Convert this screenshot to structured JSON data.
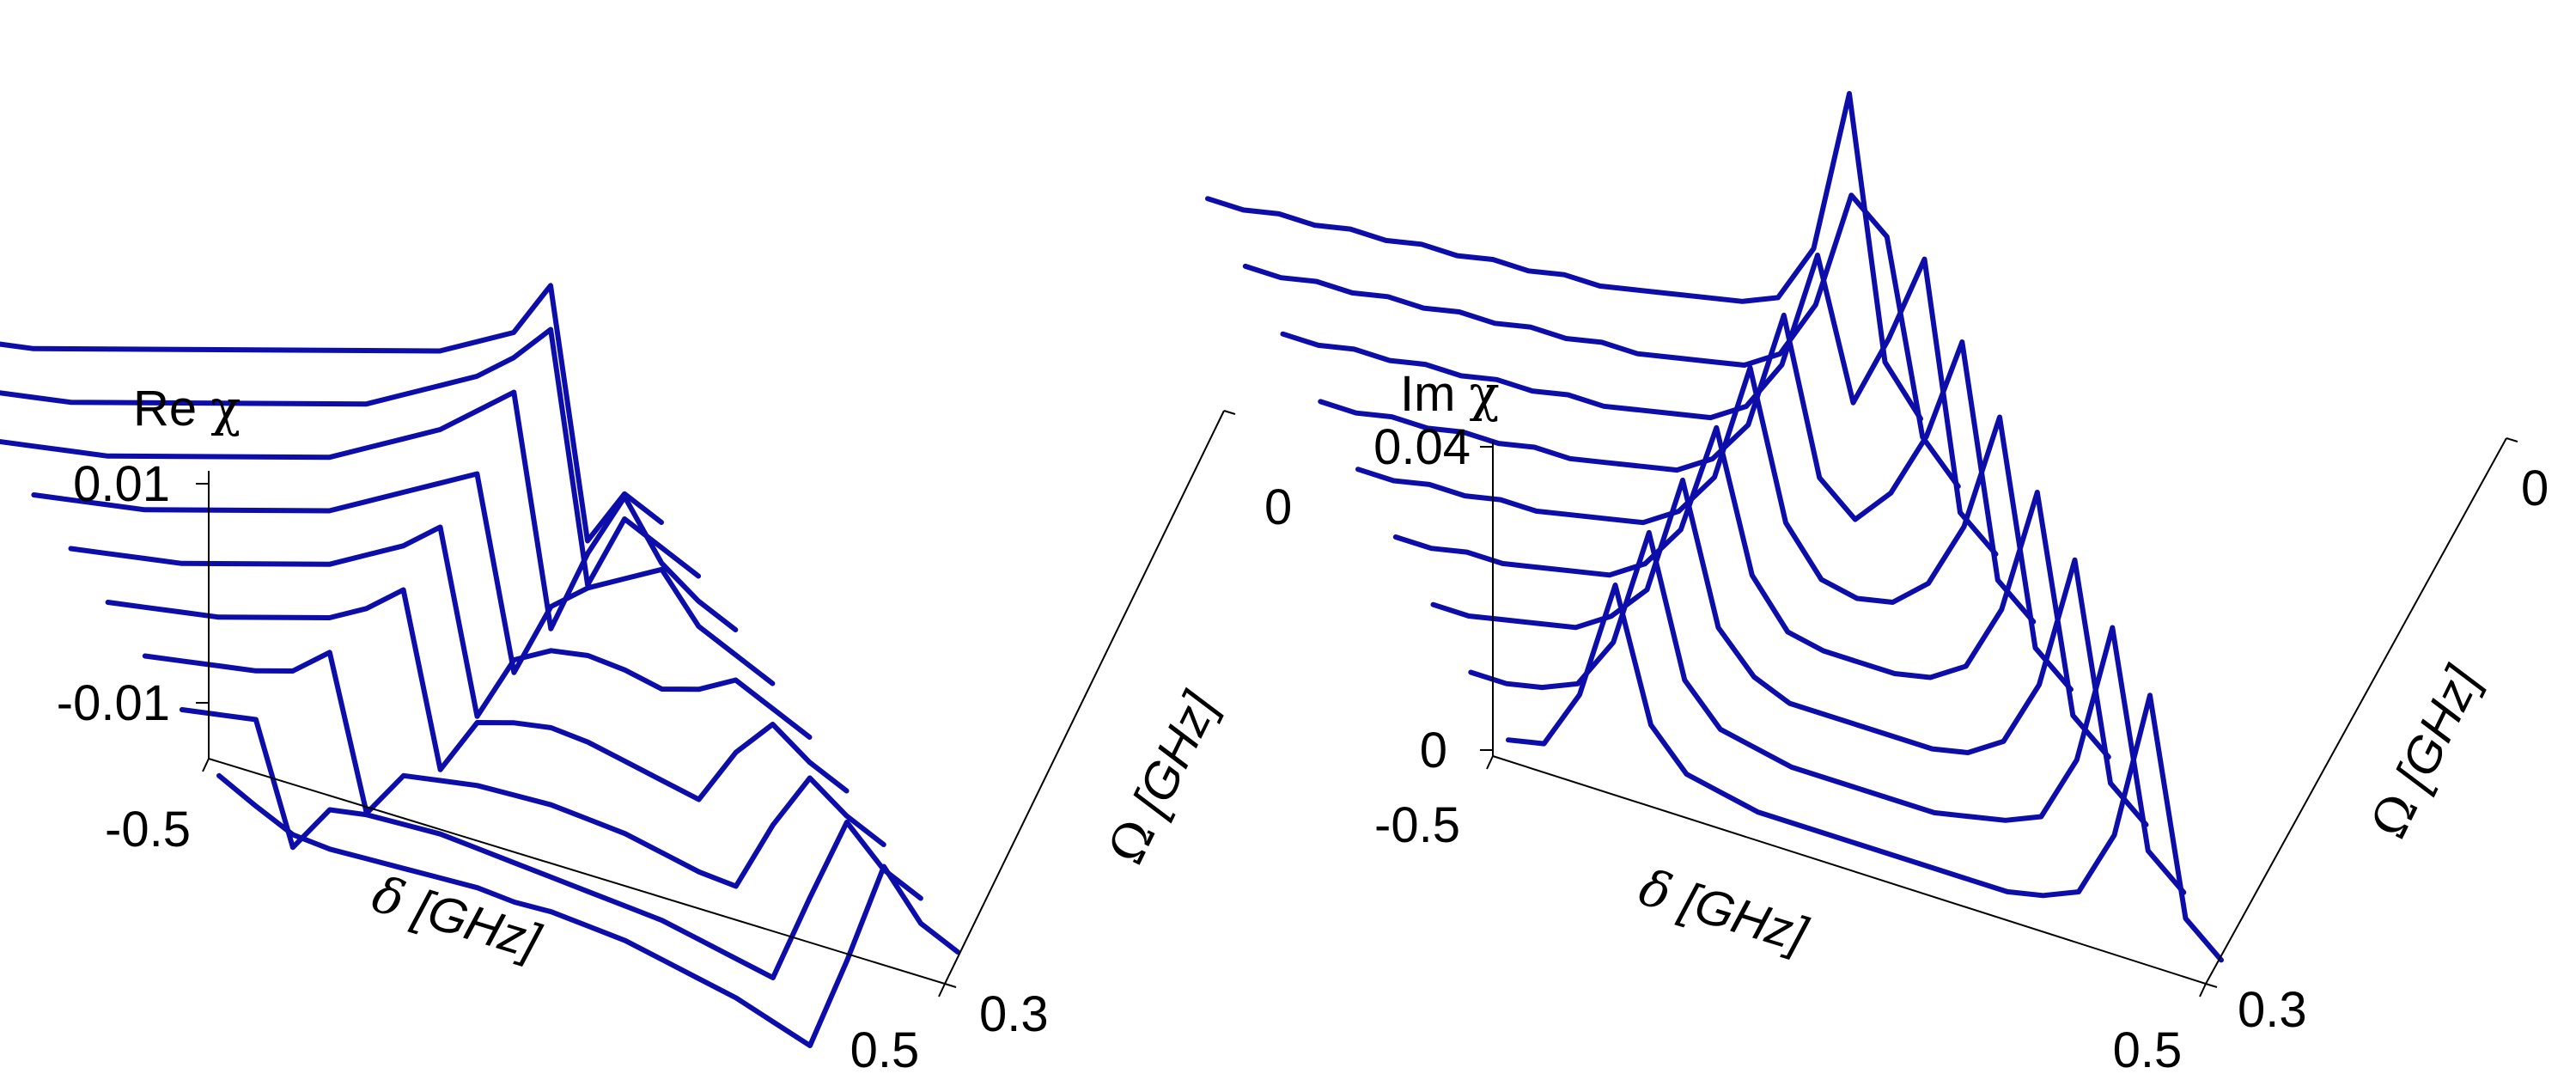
{
  "chart_data": [
    {
      "type": "line",
      "style": "3d-waterfall",
      "title": "",
      "zlabel": "Re χ",
      "zlabel_parts": [
        "Re ",
        "χ"
      ],
      "xlabel": "δ [GHz]",
      "xlabel_parts": [
        "δ",
        " [GHz]"
      ],
      "ylabel": "Ω [GHz]",
      "ylabel_parts": [
        "Ω",
        " [GHz]"
      ],
      "x_ticks": [
        "-0.5",
        "0.5"
      ],
      "y_ticks": [
        "0",
        "0.3"
      ],
      "z_ticks": [
        "0.01",
        "-0.01"
      ],
      "xlim": [
        -0.5,
        0.5
      ],
      "ylim": [
        0,
        0.3
      ],
      "zlim": [
        -0.015,
        0.015
      ],
      "color": "#0d0daa",
      "omega": [
        0.3,
        0.2625,
        0.225,
        0.1875,
        0.15,
        0.1125,
        0.075,
        0.0375,
        0
      ],
      "x": [
        -0.5,
        -0.45,
        -0.4,
        -0.35,
        -0.3,
        -0.25,
        -0.2,
        -0.15,
        -0.1,
        -0.05,
        0,
        0.05,
        0.1,
        0.15,
        0.2,
        0.25,
        0.3,
        0.35,
        0.4,
        0.45,
        0.5
      ],
      "series": [
        {
          "values": [
            0.0002,
            -0.002,
            -0.004,
            -0.0045,
            -0.0045,
            -0.0045,
            -0.0045,
            -0.0045,
            -0.005,
            -0.005,
            -0.0055,
            -0.006,
            -0.007,
            -0.008,
            -0.009,
            -0.0105,
            -0.012,
            -0.002,
            0.009,
            0.004,
            0.002
          ]
        },
        {
          "values": [
            0.0015,
            0.002,
            0.0025,
            -0.01,
            -0.005,
            -0.0045,
            -0.0045,
            -0.0045,
            -0.005,
            -0.0055,
            -0.006,
            -0.0065,
            -0.007,
            -0.0075,
            -0.0085,
            -0.0095,
            -0.0105,
            -0.001,
            0.008,
            0.004,
            0.002
          ]
        },
        {
          "values": [
            0.0015,
            0.002,
            0.0025,
            0.003,
            0.004,
            0.007,
            -0.009,
            -0.004,
            -0.0035,
            -0.003,
            -0.003,
            -0.003,
            -0.0035,
            -0.004,
            -0.005,
            -0.006,
            -0.0065,
            0.001,
            0.007,
            0.004,
            0.002
          ]
        },
        {
          "values": [
            0.0015,
            0.002,
            0.0025,
            0.003,
            0.004,
            0.005,
            0.006,
            0.008,
            0.011,
            -0.007,
            -0.001,
            0,
            0.0005,
            0,
            -0.001,
            -0.002,
            -0.003,
            0.003,
            0.007,
            0.004,
            0.002
          ]
        },
        {
          "values": [
            0.0015,
            0.002,
            0.0025,
            0.003,
            0.004,
            0.005,
            0.006,
            0.007,
            0.009,
            0.011,
            0.014,
            -0.005,
            0.002,
            0.004,
            0.0045,
            0.004,
            0.003,
            0.004,
            0.006,
            0.004,
            0.002
          ]
        },
        {
          "values": [
            0.0015,
            0.002,
            0.0025,
            0.003,
            0.004,
            0.005,
            0.006,
            0.007,
            0.008,
            0.01,
            0.012,
            0.014,
            0.016,
            -0.004,
            0.004,
            0.007,
            0.009,
            0.011,
            0.006,
            0.004,
            0.002
          ]
        },
        {
          "values": [
            0.0015,
            0.002,
            0.0025,
            0.003,
            0.004,
            0.005,
            0.006,
            0.007,
            0.008,
            0.009,
            0.011,
            0.013,
            0.015,
            0.018,
            0.021,
            -0.003,
            0.006,
            0.013,
            0.007,
            0.004,
            0.002
          ]
        },
        {
          "values": [
            0.0015,
            0.002,
            0.0025,
            0.003,
            0.004,
            0.005,
            0.006,
            0.007,
            0.008,
            0.009,
            0.01,
            0.011,
            0.013,
            0.015,
            0.017,
            0.02,
            0.024,
            -0.002,
            0.006,
            0.004,
            0.002
          ]
        },
        {
          "values": [
            0.0015,
            0.002,
            0.0025,
            0.003,
            0.004,
            0.005,
            0.006,
            0.007,
            0.008,
            0.009,
            0.01,
            0.011,
            0.012,
            0.013,
            0.014,
            0.016,
            0.018,
            0.024,
            -0.002,
            0.004,
            0.002
          ]
        }
      ]
    },
    {
      "type": "line",
      "style": "3d-waterfall",
      "title": "",
      "zlabel": "Im χ",
      "zlabel_parts": [
        "Im ",
        "χ"
      ],
      "xlabel": "δ [GHz]",
      "xlabel_parts": [
        "δ",
        " [GHz]"
      ],
      "ylabel": "Ω [GHz]",
      "ylabel_parts": [
        "Ω",
        " [GHz]"
      ],
      "x_ticks": [
        "-0.5",
        "0.5"
      ],
      "y_ticks": [
        "0",
        "0.3"
      ],
      "z_ticks": [
        "0.04",
        "0"
      ],
      "xlim": [
        -0.5,
        0.5
      ],
      "ylim": [
        0,
        0.3
      ],
      "zlim": [
        0,
        0.04
      ],
      "color": "#0d0daa",
      "omega": [
        0.3,
        0.2625,
        0.225,
        0.1875,
        0.15,
        0.1125,
        0.075,
        0.0375,
        0
      ],
      "x": [
        -0.5,
        -0.45,
        -0.4,
        -0.35,
        -0.3,
        -0.25,
        -0.2,
        -0.15,
        -0.1,
        -0.05,
        0,
        0.05,
        0.1,
        0.15,
        0.2,
        0.25,
        0.3,
        0.35,
        0.4,
        0.45,
        0.5
      ],
      "series": [
        {
          "values": [
            0.001,
            0.002,
            0.01,
            0.026,
            0.009,
            0.004,
            0.003,
            0.002,
            0.002,
            0.002,
            0.002,
            0.002,
            0.002,
            0.002,
            0.002,
            0.003,
            0.005,
            0.014,
            0.034,
            0.006,
            0.002
          ]
        },
        {
          "values": [
            0.001,
            0.001,
            0.002,
            0.004,
            0.011,
            0.027,
            0.009,
            0.004,
            0.003,
            0.002,
            0.002,
            0.002,
            0.002,
            0.002,
            0.003,
            0.004,
            0.006,
            0.015,
            0.034,
            0.006,
            0.002
          ]
        },
        {
          "values": [
            0.001,
            0.001,
            0.002,
            0.003,
            0.004,
            0.007,
            0.012,
            0.028,
            0.01,
            0.005,
            0.003,
            0.003,
            0.003,
            0.003,
            0.003,
            0.004,
            0.007,
            0.016,
            0.034,
            0.006,
            0.002
          ]
        },
        {
          "values": [
            0.001,
            0.001,
            0.002,
            0.002,
            0.003,
            0.004,
            0.005,
            0.008,
            0.014,
            0.029,
            0.011,
            0.005,
            0.004,
            0.004,
            0.004,
            0.005,
            0.008,
            0.017,
            0.034,
            0.006,
            0.002
          ]
        },
        {
          "values": [
            0.001,
            0.001,
            0.002,
            0.002,
            0.003,
            0.003,
            0.004,
            0.005,
            0.006,
            0.009,
            0.015,
            0.031,
            0.012,
            0.006,
            0.005,
            0.006,
            0.01,
            0.019,
            0.035,
            0.006,
            0.002
          ]
        },
        {
          "values": [
            0.001,
            0.001,
            0.002,
            0.002,
            0.003,
            0.003,
            0.004,
            0.004,
            0.005,
            0.006,
            0.007,
            0.01,
            0.016,
            0.032,
            0.012,
            0.008,
            0.013,
            0.022,
            0.036,
            0.006,
            0.002
          ]
        },
        {
          "values": [
            0.001,
            0.001,
            0.002,
            0.002,
            0.003,
            0.003,
            0.004,
            0.004,
            0.005,
            0.005,
            0.006,
            0.007,
            0.008,
            0.011,
            0.018,
            0.034,
            0.016,
            0.026,
            0.038,
            0.006,
            0.002
          ]
        },
        {
          "values": [
            0.001,
            0.001,
            0.002,
            0.002,
            0.003,
            0.003,
            0.004,
            0.004,
            0.005,
            0.005,
            0.006,
            0.006,
            0.007,
            0.008,
            0.009,
            0.012,
            0.02,
            0.036,
            0.032,
            0.007,
            0.002
          ]
        },
        {
          "values": [
            0.001,
            0.001,
            0.002,
            0.002,
            0.003,
            0.003,
            0.004,
            0.004,
            0.005,
            0.005,
            0.006,
            0.006,
            0.007,
            0.008,
            0.009,
            0.01,
            0.012,
            0.02,
            0.042,
            0.008,
            0.002
          ]
        }
      ]
    }
  ]
}
